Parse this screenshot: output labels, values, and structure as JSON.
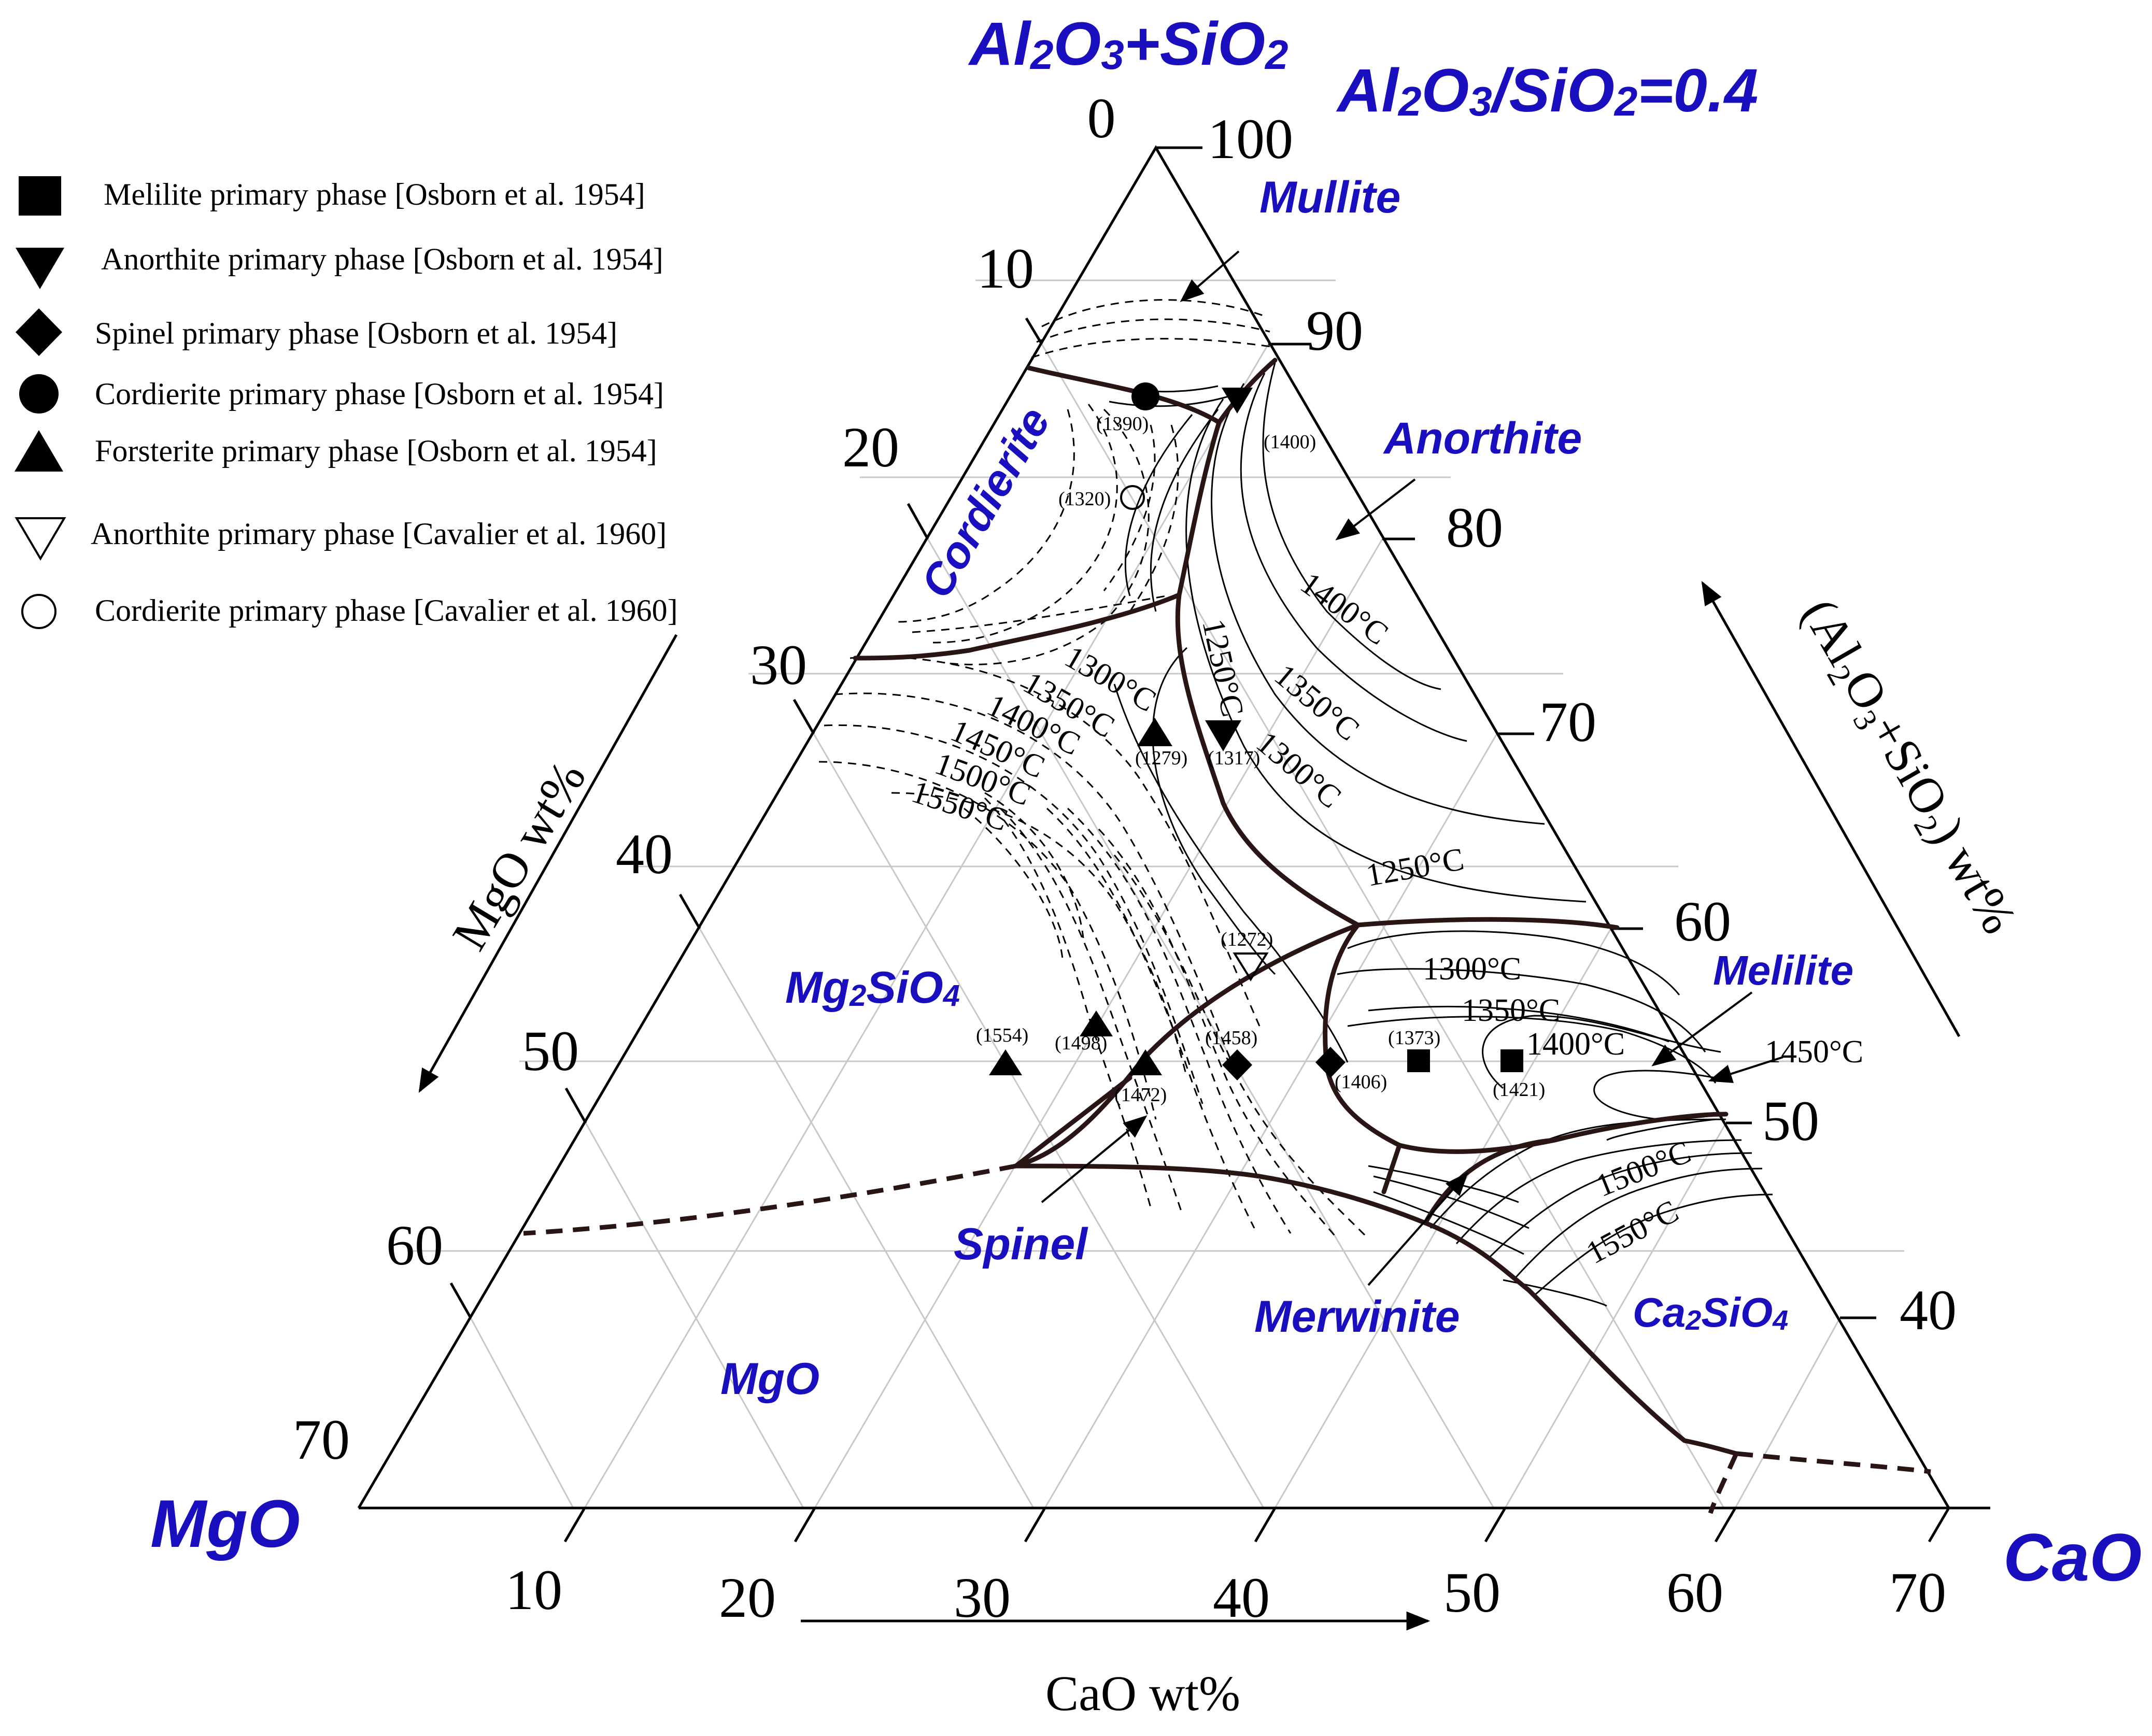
{
  "colors": {
    "blue": "#1a0fbf",
    "boundary": "#2a1515",
    "grid": "#c8c8c8",
    "black": "#000000"
  },
  "titles": {
    "top_formula": [
      "Al",
      "2",
      "O",
      "3",
      "+SiO",
      "2"
    ],
    "ratio": [
      "Al",
      "2",
      "O",
      "3",
      "/SiO",
      "2",
      "=0.4"
    ],
    "corner_mgo": "MgO",
    "corner_cao": "CaO"
  },
  "axes": {
    "left_label": "MgO wt%",
    "right_label_parts": [
      "(Al",
      "2",
      "O",
      "3",
      "+SiO",
      "2",
      ") wt%"
    ],
    "bottom_label": "CaO wt%",
    "left_ticks": [
      "0",
      "10",
      "20",
      "30",
      "40",
      "50",
      "60",
      "70"
    ],
    "right_ticks": [
      "100",
      "90",
      "80",
      "70",
      "60",
      "50",
      "40"
    ],
    "bottom_ticks": [
      "10",
      "20",
      "30",
      "40",
      "50",
      "60",
      "70"
    ]
  },
  "legend": [
    {
      "symbol": "square-filled",
      "label": "Melilite primary phase [Osborn et al. 1954]"
    },
    {
      "symbol": "triangle-down-filled",
      "label": "Anorthite primary phase [Osborn et al. 1954]"
    },
    {
      "symbol": "diamond-filled",
      "label": "Spinel primary phase [Osborn et al. 1954]"
    },
    {
      "symbol": "circle-filled",
      "label": "Cordierite primary phase [Osborn et al. 1954]"
    },
    {
      "symbol": "triangle-up-filled",
      "label": "Forsterite primary phase [Osborn et al. 1954]"
    },
    {
      "symbol": "triangle-down-open",
      "label": "Anorthite primary phase [Cavalier et al. 1960]"
    },
    {
      "symbol": "circle-open",
      "label": "Cordierite primary phase [Cavalier et al. 1960]"
    }
  ],
  "phases": {
    "mullite": "Mullite",
    "anorthite": "Anorthite",
    "cordierite": "Cordierite",
    "mg2sio4": [
      "Mg",
      "2",
      "SiO",
      "4"
    ],
    "melilite": "Melilite",
    "spinel": "Spinel",
    "merwinite": "Merwinite",
    "ca2sio4": [
      "Ca",
      "2",
      "SiO",
      "4"
    ],
    "mgo": "MgO"
  },
  "isotherms": {
    "anorthite_1400": "1400°C",
    "anorthite_1350": "1350°C",
    "anorthite_1300": "1300°C",
    "anorthite_1250": "1250°C",
    "boundary_1250": "1250°C",
    "forst_1300": "1300°C",
    "forst_1350": "1350°C",
    "forst_1400": "1400°C",
    "forst_1450": "1450°C",
    "forst_1500": "1500°C",
    "forst_1550": "1550°C",
    "melilite_1300": "1300°C",
    "melilite_1350": "1350°C",
    "melilite_1400": "1400°C",
    "melilite_1450": "1450°C",
    "ca2sio4_1500": "1500°C",
    "ca2sio4_1550": "1550°C"
  },
  "temperature_labels": {
    "t1390": "(1390)",
    "t1400": "(1400)",
    "t1320": "(1320)",
    "t1279": "(1279)",
    "t1317": "(1317)",
    "t1272": "(1272)",
    "t1554": "(1554)",
    "t1498": "(1498)",
    "t1458": "(1458)",
    "t1472": "(1472)",
    "t1406": "(1406)",
    "t1373": "(1373)",
    "t1421": "(1421)"
  }
}
